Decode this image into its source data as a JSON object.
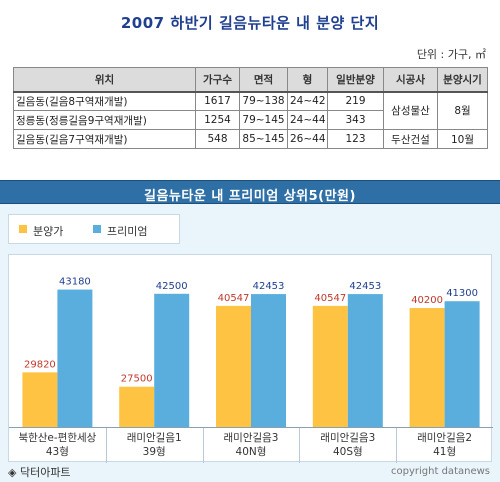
{
  "header": {
    "title": "2007 하반기 길음뉴타운 내 분양 단지",
    "unit": "단위 : 가구, ㎡"
  },
  "table": {
    "columns": [
      "위치",
      "가구수",
      "면적",
      "형",
      "일반분양",
      "시공사",
      "분양시기"
    ],
    "rows": [
      {
        "loc": "길음동(길음8구역재개발)",
        "households": "1617",
        "area": "79~138",
        "type": "24~42",
        "general": "219"
      },
      {
        "loc": "정릉동(정릉길음9구역재개발)",
        "households": "1254",
        "area": "79~145",
        "type": "24~44",
        "general": "343"
      },
      {
        "loc": "길음동(길음7구역재개발)",
        "households": "548",
        "area": "85~145",
        "type": "26~44",
        "general": "123"
      }
    ],
    "builders": [
      {
        "name": "삼성물산",
        "timing": "8월"
      },
      {
        "name": "두산건설",
        "timing": "10월"
      }
    ]
  },
  "banner": {
    "text": "길음뉴타운 내 프리미엄 상위5(만원)"
  },
  "chart_data": {
    "type": "bar",
    "categories": [
      [
        "북한산e-편한세상",
        "43형"
      ],
      [
        "래미안길음1",
        "39형"
      ],
      [
        "래미안길음3",
        "40N형"
      ],
      [
        "래미안길음3",
        "40S형"
      ],
      [
        "래미안길음2",
        "41형"
      ]
    ],
    "series": [
      {
        "name": "분양가",
        "color": "#ffc343",
        "values": [
          29820,
          27500,
          40547,
          40547,
          40200
        ]
      },
      {
        "name": "프리미엄",
        "color": "#5aaedd",
        "values": [
          43180,
          42500,
          42453,
          42453,
          41300
        ]
      }
    ],
    "label_colors": {
      "분양가": "#c0392b",
      "프리미엄": "#1f3f8f"
    },
    "ylim": [
      21000,
      46500
    ],
    "legend": "top-left",
    "grid": false
  },
  "footer": {
    "source": "◈ 닥터아파트",
    "copyright": "copyright datanews"
  }
}
